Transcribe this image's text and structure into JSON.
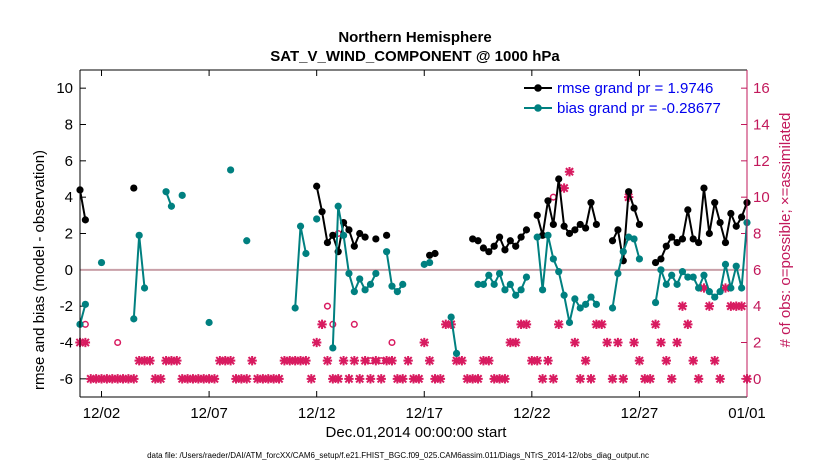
{
  "chart_data": {
    "type": "line",
    "title": "Northern Hemisphere",
    "subtitle": "SAT_V_WIND_COMPONENT @ 1000 hPa",
    "xlabel": "Dec.01,2014 00:00:00 start",
    "ylabel": "rmse and bias (model - observation)",
    "ylabel_right": "# of obs: o=possible; ×=assimilated",
    "xlim": [
      0,
      31
    ],
    "ylim": [
      -7,
      11
    ],
    "ylim_right": [
      -1,
      17
    ],
    "x_ticks": [
      {
        "value": 1,
        "label": "12/02"
      },
      {
        "value": 6,
        "label": "12/07"
      },
      {
        "value": 11,
        "label": "12/12"
      },
      {
        "value": 16,
        "label": "12/17"
      },
      {
        "value": 21,
        "label": "12/22"
      },
      {
        "value": 26,
        "label": "12/27"
      },
      {
        "value": 31,
        "label": "01/01"
      }
    ],
    "y_ticks": [
      -6,
      -4,
      -2,
      0,
      2,
      4,
      6,
      8,
      10
    ],
    "y_ticks_right": [
      0,
      2,
      4,
      6,
      8,
      10,
      12,
      14,
      16
    ],
    "footer": "data file: /Users/raeder/DAI/ATM_forcXX/CAM6_setup/f.e21.FHIST_BGC.f09_025.CAM6assim.011/Diags_NTrS_2014-12/obs_diag_output.nc",
    "series": [
      {
        "name": "rmse grand pr = 1.9746",
        "color": "#000000",
        "marker": "circle",
        "segments": [
          [
            [
              0.0,
              4.4
            ],
            [
              0.25,
              2.75
            ]
          ],
          [
            [
              2.5,
              4.5
            ]
          ],
          [
            [
              11.0,
              4.6
            ],
            [
              11.25,
              3.2
            ],
            [
              11.5,
              1.5
            ],
            [
              11.75,
              1.9
            ],
            [
              12.0,
              1.0
            ],
            [
              12.25,
              2.6
            ],
            [
              12.5,
              2.2
            ],
            [
              12.75,
              1.3
            ],
            [
              13.0,
              2.0
            ],
            [
              13.25,
              1.8
            ]
          ],
          [
            [
              13.75,
              1.7
            ]
          ],
          [
            [
              14.25,
              1.9
            ]
          ],
          [
            [
              16.25,
              0.8
            ],
            [
              16.5,
              0.9
            ]
          ],
          [
            [
              18.25,
              1.7
            ],
            [
              18.5,
              1.6
            ]
          ],
          [
            [
              18.75,
              1.2
            ],
            [
              19.0,
              1.0
            ],
            [
              19.25,
              1.3
            ],
            [
              19.5,
              1.8
            ],
            [
              19.75,
              1.1
            ],
            [
              20.0,
              1.6
            ],
            [
              20.25,
              1.3
            ],
            [
              20.5,
              1.8
            ],
            [
              20.75,
              2.2
            ]
          ],
          [
            [
              21.25,
              3.0
            ],
            [
              21.5,
              1.9
            ],
            [
              21.75,
              3.8
            ],
            [
              22.0,
              2.5
            ],
            [
              22.25,
              5.0
            ],
            [
              22.5,
              2.4
            ],
            [
              22.75,
              2.0
            ],
            [
              23.0,
              2.2
            ],
            [
              23.25,
              2.5
            ],
            [
              23.5,
              2.3
            ],
            [
              23.75,
              3.7
            ],
            [
              24.0,
              2.5
            ]
          ],
          [
            [
              24.75,
              1.6
            ],
            [
              25.0,
              2.2
            ],
            [
              25.25,
              0.5
            ],
            [
              25.5,
              4.3
            ],
            [
              25.75,
              3.4
            ],
            [
              26.0,
              2.5
            ]
          ],
          [
            [
              26.75,
              0.4
            ],
            [
              27.0,
              0.6
            ],
            [
              27.25,
              1.3
            ],
            [
              27.5,
              1.8
            ],
            [
              27.75,
              1.5
            ],
            [
              28.0,
              1.7
            ],
            [
              28.25,
              3.3
            ],
            [
              28.5,
              1.7
            ],
            [
              28.75,
              1.5
            ],
            [
              29.0,
              4.5
            ],
            [
              29.25,
              2.0
            ],
            [
              29.5,
              3.7
            ],
            [
              29.75,
              2.6
            ],
            [
              30.0,
              1.5
            ],
            [
              30.25,
              3.1
            ],
            [
              30.5,
              2.4
            ],
            [
              30.75,
              2.9
            ],
            [
              31.0,
              3.7
            ]
          ]
        ]
      },
      {
        "name": "bias grand pr = -0.28677",
        "color": "#008080",
        "marker": "circle",
        "segments": [
          [
            [
              0.0,
              -3.0
            ],
            [
              0.25,
              -1.9
            ]
          ],
          [
            [
              1.0,
              0.4
            ]
          ],
          [
            [
              2.5,
              -2.7
            ],
            [
              2.75,
              1.9
            ],
            [
              3.0,
              -1.0
            ]
          ],
          [
            [
              4.0,
              4.3
            ],
            [
              4.25,
              3.5
            ]
          ],
          [
            [
              4.75,
              4.1
            ]
          ],
          [
            [
              6.0,
              -2.9
            ]
          ],
          [
            [
              7.0,
              5.5
            ]
          ],
          [
            [
              7.75,
              1.6
            ]
          ],
          [
            [
              10.0,
              -2.1
            ],
            [
              10.25,
              2.4
            ],
            [
              10.5,
              0.9
            ]
          ],
          [
            [
              11.0,
              2.8
            ]
          ],
          [
            [
              11.75,
              -4.3
            ],
            [
              12.0,
              3.5
            ],
            [
              12.25,
              1.9
            ],
            [
              12.5,
              -0.2
            ],
            [
              12.75,
              -1.2
            ],
            [
              13.0,
              -0.5
            ],
            [
              13.25,
              -1.1
            ],
            [
              13.5,
              -0.8
            ],
            [
              13.75,
              -0.2
            ]
          ],
          [
            [
              14.25,
              1.0
            ],
            [
              14.5,
              -0.9
            ],
            [
              14.75,
              -1.2
            ],
            [
              15.0,
              -0.8
            ]
          ],
          [
            [
              16.0,
              0.3
            ],
            [
              16.25,
              0.4
            ]
          ],
          [
            [
              17.25,
              -2.6
            ],
            [
              17.5,
              -4.6
            ]
          ],
          [
            [
              18.5,
              -0.8
            ]
          ],
          [
            [
              18.75,
              -0.8
            ],
            [
              19.0,
              -0.3
            ],
            [
              19.25,
              -0.8
            ],
            [
              19.5,
              -0.2
            ],
            [
              19.75,
              -1.1
            ],
            [
              20.0,
              -0.8
            ],
            [
              20.25,
              -1.4
            ],
            [
              20.5,
              -1.1
            ],
            [
              20.75,
              -0.4
            ]
          ],
          [
            [
              21.25,
              1.8
            ],
            [
              21.5,
              -1.1
            ],
            [
              21.75,
              1.9
            ],
            [
              22.0,
              0.6
            ],
            [
              22.25,
              -0.1
            ],
            [
              22.5,
              -1.4
            ],
            [
              22.75,
              -2.9
            ],
            [
              23.0,
              -1.6
            ],
            [
              23.25,
              -2.1
            ],
            [
              23.5,
              -1.9
            ],
            [
              23.75,
              -1.5
            ],
            [
              24.0,
              -1.9
            ]
          ],
          [
            [
              24.75,
              -2.1
            ],
            [
              25.0,
              -0.2
            ],
            [
              25.25,
              1.0
            ],
            [
              25.5,
              1.8
            ],
            [
              25.75,
              1.7
            ],
            [
              26.0,
              0.6
            ]
          ],
          [
            [
              26.75,
              -1.8
            ],
            [
              27.0,
              0.0
            ],
            [
              27.25,
              -0.8
            ],
            [
              27.5,
              -0.3
            ],
            [
              27.75,
              -0.8
            ],
            [
              28.0,
              -0.1
            ],
            [
              28.25,
              -0.4
            ],
            [
              28.5,
              -0.4
            ],
            [
              28.75,
              -1.0
            ],
            [
              29.0,
              -0.3
            ],
            [
              29.25,
              -1.2
            ],
            [
              29.5,
              -1.5
            ],
            [
              29.75,
              -1.2
            ],
            [
              30.0,
              0.3
            ],
            [
              30.25,
              -1.0
            ],
            [
              30.5,
              0.2
            ],
            [
              30.75,
              -1.0
            ],
            [
              31.0,
              2.6
            ]
          ]
        ]
      }
    ],
    "obs_assimilated": {
      "symbol": "×",
      "color": "#d81b60",
      "points": [
        [
          0,
          2
        ],
        [
          0.25,
          2
        ],
        [
          0.5,
          0
        ],
        [
          0.75,
          0
        ],
        [
          1.0,
          0
        ],
        [
          1.25,
          0
        ],
        [
          1.5,
          0
        ],
        [
          1.75,
          0
        ],
        [
          2.0,
          0
        ],
        [
          2.25,
          0
        ],
        [
          2.5,
          0
        ],
        [
          2.75,
          1
        ],
        [
          3.0,
          1
        ],
        [
          3.25,
          1
        ],
        [
          3.5,
          0
        ],
        [
          3.75,
          0
        ],
        [
          4.0,
          1
        ],
        [
          4.25,
          1
        ],
        [
          4.5,
          1
        ],
        [
          4.75,
          0
        ],
        [
          5.0,
          0
        ],
        [
          5.25,
          0
        ],
        [
          5.5,
          0
        ],
        [
          5.75,
          0
        ],
        [
          6.0,
          0
        ],
        [
          6.25,
          0
        ],
        [
          6.5,
          1
        ],
        [
          6.75,
          1
        ],
        [
          7.0,
          1
        ],
        [
          7.25,
          0
        ],
        [
          7.5,
          0
        ],
        [
          7.75,
          0
        ],
        [
          8.0,
          1
        ],
        [
          8.25,
          0
        ],
        [
          8.5,
          0
        ],
        [
          8.75,
          0
        ],
        [
          9.0,
          0
        ],
        [
          9.25,
          0
        ],
        [
          9.5,
          1
        ],
        [
          9.75,
          1
        ],
        [
          10.0,
          1
        ],
        [
          10.25,
          1
        ],
        [
          10.5,
          1
        ],
        [
          10.75,
          0
        ],
        [
          11.0,
          2
        ],
        [
          11.25,
          3
        ],
        [
          11.5,
          1
        ],
        [
          11.75,
          0
        ],
        [
          12.0,
          0
        ],
        [
          12.25,
          1
        ],
        [
          12.5,
          0
        ],
        [
          12.75,
          1
        ],
        [
          13.0,
          0
        ],
        [
          13.25,
          1
        ],
        [
          13.5,
          0
        ],
        [
          13.75,
          1
        ],
        [
          14.0,
          0
        ],
        [
          14.25,
          1
        ],
        [
          14.5,
          1
        ],
        [
          14.75,
          0
        ],
        [
          15.0,
          0
        ],
        [
          15.25,
          1
        ],
        [
          15.5,
          0
        ],
        [
          15.75,
          0
        ],
        [
          16.0,
          2
        ],
        [
          16.25,
          1
        ],
        [
          16.5,
          0
        ],
        [
          16.75,
          0
        ],
        [
          17.0,
          3
        ],
        [
          17.25,
          3
        ],
        [
          17.5,
          1
        ],
        [
          17.75,
          1
        ],
        [
          18.0,
          0
        ],
        [
          18.25,
          0
        ],
        [
          18.5,
          0
        ],
        [
          18.75,
          1
        ],
        [
          19.0,
          1
        ],
        [
          19.25,
          0
        ],
        [
          19.5,
          0
        ],
        [
          19.75,
          0
        ],
        [
          20.0,
          2
        ],
        [
          20.25,
          2
        ],
        [
          20.5,
          3
        ],
        [
          20.75,
          3
        ],
        [
          21.0,
          1
        ],
        [
          21.25,
          1
        ],
        [
          21.5,
          0
        ],
        [
          21.75,
          1
        ],
        [
          22.0,
          0
        ],
        [
          22.25,
          3
        ],
        [
          22.5,
          10.5
        ],
        [
          22.75,
          11.4
        ],
        [
          23.0,
          2
        ],
        [
          23.25,
          0
        ],
        [
          23.5,
          1
        ],
        [
          23.75,
          0
        ],
        [
          24.0,
          3
        ],
        [
          24.25,
          3
        ],
        [
          24.5,
          2
        ],
        [
          24.75,
          0
        ],
        [
          25.0,
          2
        ],
        [
          25.25,
          0
        ],
        [
          25.5,
          10
        ],
        [
          25.75,
          2
        ],
        [
          26.0,
          1
        ],
        [
          26.25,
          0
        ],
        [
          26.5,
          0
        ],
        [
          26.75,
          3
        ],
        [
          27.0,
          2
        ],
        [
          27.25,
          1
        ],
        [
          27.5,
          0
        ],
        [
          27.75,
          2
        ],
        [
          28.0,
          4
        ],
        [
          28.25,
          3
        ],
        [
          28.5,
          1
        ],
        [
          28.75,
          0
        ],
        [
          29.0,
          5
        ],
        [
          29.25,
          4
        ],
        [
          29.5,
          1
        ],
        [
          29.75,
          0
        ],
        [
          30.0,
          5
        ],
        [
          30.25,
          4
        ],
        [
          30.5,
          4
        ],
        [
          30.75,
          4
        ],
        [
          31.0,
          0
        ]
      ]
    },
    "obs_possible": {
      "symbol": "o",
      "color": "#d81b60",
      "points": [
        [
          0.25,
          3
        ],
        [
          1.75,
          2
        ],
        [
          11.5,
          4
        ],
        [
          11.75,
          3
        ],
        [
          12.0,
          8
        ],
        [
          12.75,
          3
        ],
        [
          13.5,
          1
        ],
        [
          14.0,
          1
        ],
        [
          14.5,
          2
        ],
        [
          22.0,
          10
        ]
      ]
    }
  }
}
